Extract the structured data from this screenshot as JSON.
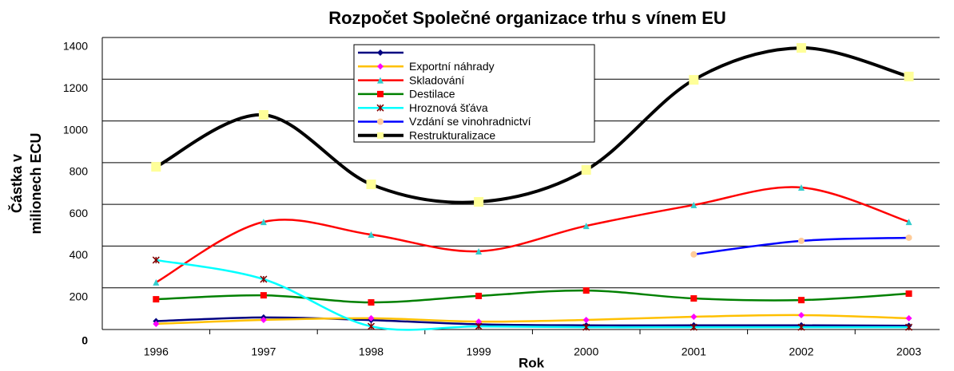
{
  "chart_data": {
    "type": "line",
    "title": "Rozpočet Společné organizace trhu s vínem EU",
    "xlabel": "Rok",
    "ylabel": [
      "Částka v",
      "milionech ECU"
    ],
    "categories": [
      "1996",
      "1997",
      "1998",
      "1999",
      "2000",
      "2001",
      "2002",
      "2003"
    ],
    "series": [
      {
        "name": null,
        "color": "#000080",
        "marker": "diamond",
        "marker_color": "#000080",
        "values": [
          40,
          58,
          45,
          25,
          20,
          20,
          20,
          18
        ]
      },
      {
        "name": "Exportní náhrady",
        "color": "#ffc000",
        "marker": "diamond",
        "marker_color": "#ff00ff",
        "values": [
          27,
          46,
          54,
          38,
          46,
          61,
          69,
          54
        ]
      },
      {
        "name": "Skladování",
        "color": "#ff0000",
        "marker": "triangle",
        "marker_color": "#33cccc",
        "values": [
          226,
          516,
          455,
          375,
          497,
          597,
          681,
          516
        ]
      },
      {
        "name": "Destilace",
        "color": "#008000",
        "marker": "square",
        "marker_color": "#ff0000",
        "values": [
          145,
          164,
          130,
          161,
          187,
          149,
          141,
          172
        ]
      },
      {
        "name": "Hroznová šťáva",
        "color": "#00ffff",
        "marker": "star",
        "marker_color": "#800000",
        "values": [
          333,
          241,
          15,
          15,
          11,
          11,
          11,
          11
        ]
      },
      {
        "name": "Vzdání se vinohradnictví",
        "color": "#0000ff",
        "marker": "circle",
        "marker_color": "#ffcc99",
        "values": [
          null,
          null,
          null,
          null,
          null,
          360,
          425,
          440
        ]
      },
      {
        "name": "Restrukturalizace",
        "color": "#000000",
        "marker": "square",
        "marker_color": "#ffff99",
        "values": [
          780,
          1029,
          696,
          612,
          765,
          1197,
          1350,
          1213
        ]
      }
    ],
    "ylim": [
      0,
      1400
    ],
    "yticks": [
      0,
      200,
      400,
      600,
      800,
      1000,
      1200,
      1400
    ],
    "grid": true
  }
}
